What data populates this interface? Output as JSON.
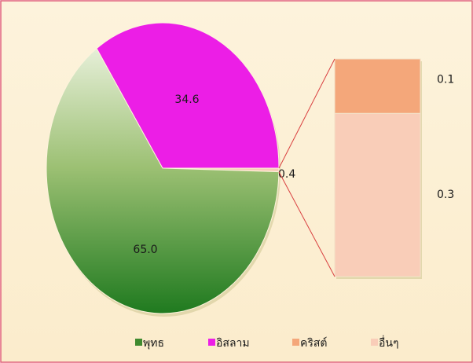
{
  "chart_data": {
    "type": "pie",
    "categories": [
      "พุทธ",
      "อิสลาม"
    ],
    "values": [
      65.0,
      34.6
    ],
    "value_labels": [
      "65.0",
      "34.6"
    ],
    "colors": [
      "#4f9a3a",
      "#ec1ee6"
    ],
    "secondary": {
      "categories": [
        "คริสต์",
        "อื่นๆ"
      ],
      "values": [
        0.1,
        0.3
      ],
      "colors": [
        "#f4a77a",
        "#f9cdb8"
      ],
      "total": 0.4
    },
    "legend": "bottom"
  }
}
